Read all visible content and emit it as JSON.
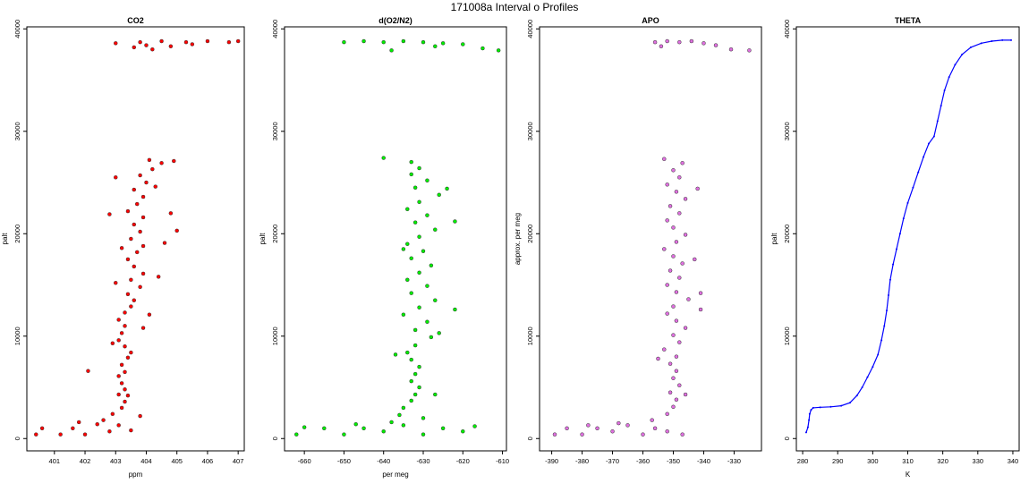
{
  "figure": {
    "title": "171008a   Interval o Profiles"
  },
  "chart_data": [
    {
      "type": "scatter",
      "title": "CO2",
      "xlabel": "ppm",
      "ylabel": "palt",
      "color": "#ff0000",
      "xlim": [
        400.1,
        407.2
      ],
      "ylim": [
        -1200,
        40200
      ],
      "xticks": [
        401,
        402,
        403,
        404,
        405,
        406,
        407
      ],
      "yticks": [
        0,
        10000,
        20000,
        30000,
        40000
      ],
      "series": [
        {
          "points": [
            [
              400.4,
              400
            ],
            [
              400.6,
              1000
            ],
            [
              401.2,
              400
            ],
            [
              401.6,
              1000
            ],
            [
              402.0,
              400
            ],
            [
              402.4,
              1400
            ],
            [
              402.8,
              700
            ],
            [
              403.1,
              1300
            ],
            [
              401.8,
              1600
            ],
            [
              402.6,
              1800
            ],
            [
              402.9,
              2400
            ],
            [
              403.2,
              3000
            ],
            [
              403.3,
              3600
            ],
            [
              403.4,
              4200
            ],
            [
              403.3,
              4800
            ],
            [
              403.2,
              5400
            ],
            [
              403.1,
              6100
            ],
            [
              403.3,
              6500
            ],
            [
              403.2,
              7200
            ],
            [
              403.4,
              7900
            ],
            [
              403.5,
              8400
            ],
            [
              403.3,
              9000
            ],
            [
              403.1,
              9600
            ],
            [
              403.2,
              10300
            ],
            [
              403.3,
              11000
            ],
            [
              403.1,
              11600
            ],
            [
              403.3,
              12300
            ],
            [
              403.5,
              12900
            ],
            [
              403.6,
              13500
            ],
            [
              403.4,
              14100
            ],
            [
              403.8,
              14800
            ],
            [
              403.5,
              15500
            ],
            [
              403.9,
              16100
            ],
            [
              403.6,
              16800
            ],
            [
              403.4,
              17500
            ],
            [
              403.7,
              18200
            ],
            [
              403.9,
              18800
            ],
            [
              403.5,
              19500
            ],
            [
              403.8,
              20200
            ],
            [
              403.6,
              20900
            ],
            [
              403.9,
              21600
            ],
            [
              403.4,
              22200
            ],
            [
              403.7,
              22900
            ],
            [
              403.9,
              23600
            ],
            [
              403.6,
              24300
            ],
            [
              404.0,
              25000
            ],
            [
              403.8,
              25700
            ],
            [
              404.2,
              26300
            ],
            [
              404.5,
              26900
            ],
            [
              404.1,
              27200
            ],
            [
              402.1,
              6600
            ],
            [
              405.0,
              20300
            ],
            [
              404.8,
              22000
            ],
            [
              402.8,
              21900
            ],
            [
              404.3,
              24600
            ],
            [
              403.0,
              25500
            ],
            [
              404.9,
              27100
            ],
            [
              403.2,
              18600
            ],
            [
              404.1,
              12100
            ],
            [
              402.9,
              9300
            ],
            [
              404.4,
              15800
            ],
            [
              403.9,
              10800
            ],
            [
              403.0,
              15200
            ],
            [
              404.6,
              19100
            ],
            [
              403.1,
              4300
            ],
            [
              403.8,
              2200
            ],
            [
              403.5,
              800
            ],
            [
              403.0,
              38600
            ],
            [
              403.8,
              38700
            ],
            [
              404.5,
              38800
            ],
            [
              405.3,
              38700
            ],
            [
              406.0,
              38800
            ],
            [
              406.7,
              38700
            ],
            [
              407.0,
              38800
            ],
            [
              404.0,
              38400
            ],
            [
              404.8,
              38300
            ],
            [
              403.6,
              38200
            ],
            [
              405.5,
              38500
            ],
            [
              404.2,
              38000
            ]
          ]
        }
      ]
    },
    {
      "type": "scatter",
      "title": "d(O2/N2)",
      "xlabel": "per meg",
      "ylabel": "palt",
      "color": "#00ee00",
      "xlim": [
        -665,
        -609
      ],
      "ylim": [
        -1200,
        40200
      ],
      "xticks": [
        -660,
        -650,
        -640,
        -630,
        -620,
        -610
      ],
      "yticks": [
        0,
        10000,
        20000,
        30000,
        40000
      ],
      "series": [
        {
          "points": [
            [
              -662,
              400
            ],
            [
              -655,
              1000
            ],
            [
              -650,
              400
            ],
            [
              -645,
              1000
            ],
            [
              -640,
              700
            ],
            [
              -635,
              1300
            ],
            [
              -630,
              400
            ],
            [
              -625,
              1000
            ],
            [
              -620,
              700
            ],
            [
              -617,
              1200
            ],
            [
              -660,
              1100
            ],
            [
              -647,
              1400
            ],
            [
              -638,
              1600
            ],
            [
              -636,
              2300
            ],
            [
              -635,
              3000
            ],
            [
              -633,
              3700
            ],
            [
              -632,
              4300
            ],
            [
              -631,
              5000
            ],
            [
              -633,
              5600
            ],
            [
              -632,
              6300
            ],
            [
              -631,
              7000
            ],
            [
              -633,
              7700
            ],
            [
              -634,
              8400
            ],
            [
              -632,
              9100
            ],
            [
              -628,
              9900
            ],
            [
              -632,
              10600
            ],
            [
              -629,
              11400
            ],
            [
              -635,
              12100
            ],
            [
              -631,
              12800
            ],
            [
              -627,
              13500
            ],
            [
              -633,
              14200
            ],
            [
              -629,
              14900
            ],
            [
              -634,
              15500
            ],
            [
              -631,
              16200
            ],
            [
              -628,
              16900
            ],
            [
              -633,
              17600
            ],
            [
              -630,
              18300
            ],
            [
              -634,
              19000
            ],
            [
              -631,
              19700
            ],
            [
              -627,
              20400
            ],
            [
              -632,
              21100
            ],
            [
              -629,
              21800
            ],
            [
              -634,
              22400
            ],
            [
              -631,
              23100
            ],
            [
              -626,
              23800
            ],
            [
              -632,
              24500
            ],
            [
              -629,
              25200
            ],
            [
              -633,
              25800
            ],
            [
              -631,
              26400
            ],
            [
              -633,
              27000
            ],
            [
              -640,
              27400
            ],
            [
              -624,
              24400
            ],
            [
              -622,
              12600
            ],
            [
              -626,
              10300
            ],
            [
              -637,
              8200
            ],
            [
              -627,
              4300
            ],
            [
              -635,
              18500
            ],
            [
              -622,
              21200
            ],
            [
              -630,
              2000
            ],
            [
              -650,
              38700
            ],
            [
              -645,
              38800
            ],
            [
              -640,
              38700
            ],
            [
              -635,
              38800
            ],
            [
              -630,
              38700
            ],
            [
              -625,
              38600
            ],
            [
              -620,
              38500
            ],
            [
              -615,
              38100
            ],
            [
              -611,
              37900
            ],
            [
              -638,
              37900
            ],
            [
              -627,
              38300
            ]
          ]
        }
      ]
    },
    {
      "type": "scatter",
      "title": "APO",
      "xlabel": "",
      "ylabel": "approx. per meg",
      "color": "#e070e0",
      "xlim": [
        -394,
        -321
      ],
      "ylim": [
        -1200,
        40200
      ],
      "xticks": [
        -390,
        -380,
        -370,
        -360,
        -350,
        -340,
        -330
      ],
      "yticks": [
        0,
        10000,
        20000,
        30000,
        40000
      ],
      "series": [
        {
          "points": [
            [
              -389,
              400
            ],
            [
              -385,
              1000
            ],
            [
              -380,
              400
            ],
            [
              -375,
              1000
            ],
            [
              -370,
              700
            ],
            [
              -365,
              1300
            ],
            [
              -360,
              400
            ],
            [
              -356,
              1000
            ],
            [
              -352,
              700
            ],
            [
              -347,
              400
            ],
            [
              -378,
              1300
            ],
            [
              -368,
              1500
            ],
            [
              -357,
              1800
            ],
            [
              -352,
              2400
            ],
            [
              -350,
              3100
            ],
            [
              -349,
              3800
            ],
            [
              -351,
              4500
            ],
            [
              -348,
              5200
            ],
            [
              -350,
              5900
            ],
            [
              -349,
              6600
            ],
            [
              -351,
              7300
            ],
            [
              -349,
              8000
            ],
            [
              -353,
              8700
            ],
            [
              -348,
              9400
            ],
            [
              -350,
              10100
            ],
            [
              -346,
              10800
            ],
            [
              -349,
              11500
            ],
            [
              -352,
              12200
            ],
            [
              -350,
              12900
            ],
            [
              -345,
              13600
            ],
            [
              -349,
              14300
            ],
            [
              -352,
              15000
            ],
            [
              -348,
              15700
            ],
            [
              -351,
              16400
            ],
            [
              -347,
              17100
            ],
            [
              -350,
              17800
            ],
            [
              -353,
              18500
            ],
            [
              -349,
              19200
            ],
            [
              -346,
              19900
            ],
            [
              -350,
              20600
            ],
            [
              -352,
              21300
            ],
            [
              -348,
              22000
            ],
            [
              -351,
              22700
            ],
            [
              -346,
              23400
            ],
            [
              -349,
              24100
            ],
            [
              -352,
              24800
            ],
            [
              -348,
              25500
            ],
            [
              -350,
              26200
            ],
            [
              -347,
              26900
            ],
            [
              -353,
              27300
            ],
            [
              -342,
              24400
            ],
            [
              -341,
              12600
            ],
            [
              -346,
              4300
            ],
            [
              -341,
              14200
            ],
            [
              -343,
              17500
            ],
            [
              -355,
              7800
            ],
            [
              -356,
              38700
            ],
            [
              -352,
              38800
            ],
            [
              -348,
              38700
            ],
            [
              -344,
              38800
            ],
            [
              -340,
              38600
            ],
            [
              -336,
              38400
            ],
            [
              -331,
              38000
            ],
            [
              -325,
              37900
            ],
            [
              -354,
              38300
            ]
          ]
        }
      ]
    },
    {
      "type": "line",
      "title": "THETA",
      "xlabel": "K",
      "ylabel": "palt",
      "color": "#0000ff",
      "xlim": [
        278.2,
        341.8
      ],
      "ylim": [
        -1200,
        40200
      ],
      "xticks": [
        280,
        290,
        300,
        310,
        320,
        330,
        340
      ],
      "yticks": [
        0,
        10000,
        20000,
        30000,
        40000
      ],
      "series": [
        {
          "points": [
            [
              281.0,
              600
            ],
            [
              281.5,
              1100
            ],
            [
              281.8,
              1800
            ],
            [
              282.0,
              2400
            ],
            [
              282.4,
              2800
            ],
            [
              283.0,
              3000
            ],
            [
              285.0,
              3050
            ],
            [
              288.0,
              3100
            ],
            [
              291.0,
              3200
            ],
            [
              293.5,
              3500
            ],
            [
              295.5,
              4200
            ],
            [
              297.0,
              5000
            ],
            [
              298.5,
              6000
            ],
            [
              300.0,
              7000
            ],
            [
              301.5,
              8200
            ],
            [
              302.5,
              9600
            ],
            [
              303.3,
              11000
            ],
            [
              304.0,
              12500
            ],
            [
              304.5,
              14000
            ],
            [
              305.0,
              15500
            ],
            [
              305.8,
              17000
            ],
            [
              306.8,
              18500
            ],
            [
              307.8,
              20000
            ],
            [
              308.8,
              21500
            ],
            [
              310.0,
              23000
            ],
            [
              311.5,
              24500
            ],
            [
              313.0,
              26000
            ],
            [
              314.5,
              27500
            ],
            [
              316.0,
              28800
            ],
            [
              317.5,
              29500
            ],
            [
              318.5,
              31000
            ],
            [
              319.5,
              32500
            ],
            [
              320.5,
              34000
            ],
            [
              321.8,
              35300
            ],
            [
              323.5,
              36500
            ],
            [
              325.5,
              37500
            ],
            [
              328.0,
              38200
            ],
            [
              331.0,
              38600
            ],
            [
              334.0,
              38800
            ],
            [
              337.0,
              38900
            ],
            [
              339.5,
              38900
            ]
          ]
        }
      ]
    }
  ]
}
